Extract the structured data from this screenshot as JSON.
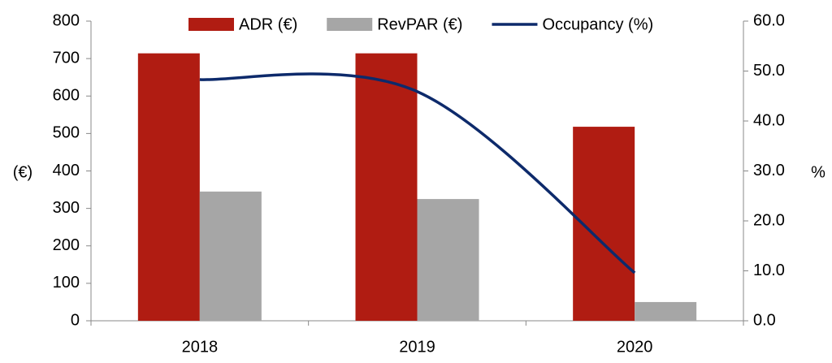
{
  "chart_data": {
    "type": "bar-line",
    "categories": [
      "2018",
      "2019",
      "2020"
    ],
    "series": [
      {
        "name": "ADR (€)",
        "color": "#b01c12",
        "values": [
          714,
          714,
          518
        ]
      },
      {
        "name": "RevPAR (€)",
        "color": "#a6a6a6",
        "values": [
          345,
          325,
          50
        ]
      },
      {
        "name": "Occupancy (%)",
        "color": "#0d2a6b",
        "values": [
          48.3,
          45.9,
          9.6
        ],
        "axis": "y2",
        "type": "line",
        "smooth": true
      }
    ],
    "ylabel": "(€)",
    "y2label": "%",
    "ylim": [
      0,
      800
    ],
    "yticks": [
      0,
      100,
      200,
      300,
      400,
      500,
      600,
      700,
      800
    ],
    "y2lim": [
      0,
      60
    ],
    "y2ticks": [
      {
        "value": 0,
        "label": "0.0"
      },
      {
        "value": 10,
        "label": "10.0"
      },
      {
        "value": 20,
        "label": "20.0"
      },
      {
        "value": 30,
        "label": "30.0"
      },
      {
        "value": 40,
        "label": "40.0"
      },
      {
        "value": 50,
        "label": "50.0"
      },
      {
        "value": 60,
        "label": "60.0"
      }
    ],
    "grid": false,
    "legend": "top"
  }
}
